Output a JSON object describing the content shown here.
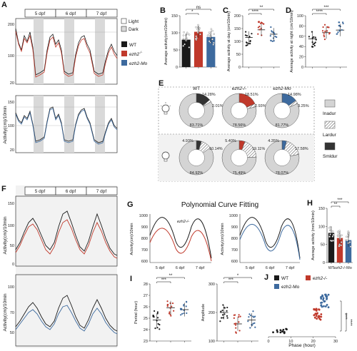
{
  "colors": {
    "wt": "#1a1a1a",
    "ezh2_mut": "#c0392b",
    "ezh2_mo": "#3d6a9e",
    "dark_band": "#d9d9d9",
    "panel_bg": "#f2f2f2",
    "grey_slice": "#d4d4d4"
  },
  "panel_letters": [
    "A",
    "B",
    "C",
    "D",
    "E",
    "F",
    "G",
    "H",
    "I",
    "J"
  ],
  "A": {
    "day_labels": [
      "5 dpf",
      "6 dpf",
      "7 dpf"
    ],
    "ylabel": "Activity(cm)/10min",
    "top_ticks": [
      "200",
      "100",
      "20"
    ],
    "bottom_ticks": [
      "150",
      "100",
      "20"
    ],
    "legend_light": "Light",
    "legend_dark": "Dark",
    "legend_series": [
      {
        "name": "WT",
        "color": "#1a1a1a",
        "bind_key": "wt"
      },
      {
        "name": "ezh2",
        "sup": "-/-",
        "color": "#c0392b",
        "bind_key": "mut"
      },
      {
        "name": "ezh2-Mo",
        "color": "#3d6a9e",
        "bind_key": "mo"
      }
    ]
  },
  "chart_data": [
    {
      "panel": "B",
      "type": "bar",
      "ylabel": "Average activity(cm/10min)",
      "ylim": [
        0,
        150
      ],
      "yticks": [
        "150",
        "100",
        "50",
        "0"
      ],
      "categories": [
        "WT",
        "ezh2-/-",
        "ezh2-Mo"
      ],
      "values": [
        80,
        103,
        88
      ],
      "sig": [
        "*",
        "ns"
      ]
    },
    {
      "panel": "C",
      "type": "scatter",
      "ylabel": "Average activity at day (cm/10min)",
      "ylim": [
        0,
        200
      ],
      "yticks": [
        "200",
        "150",
        "100",
        "50",
        "0"
      ],
      "categories": [
        "WT",
        "ezh2-/-",
        "ezh2-Mo"
      ],
      "values": [
        115,
        145,
        128
      ],
      "sig": [
        "****",
        "**"
      ]
    },
    {
      "panel": "D",
      "type": "scatter",
      "ylabel": "Average activity at night (cm/10min)",
      "ylim": [
        0,
        100
      ],
      "yticks": [
        "100",
        "80",
        "60",
        "40",
        "20",
        "0"
      ],
      "categories": [
        "WT",
        "ezh2-/-",
        "ezh2-Mo"
      ],
      "values": [
        55,
        67,
        72
      ],
      "sig": [
        "****",
        "***"
      ]
    },
    {
      "panel": "E",
      "type": "pie",
      "categories": [
        "Inadur",
        "Lardur",
        "Smldur"
      ],
      "groups": [
        "WT",
        "ezh2-/-",
        "ezh2-Mo"
      ],
      "light": [
        [
          83.71,
          2.01,
          14.28
        ],
        [
          78.56,
          2.93,
          18.51
        ],
        [
          81.77,
          3.25,
          14.98
        ]
      ],
      "dark": [
        [
          84.92,
          10.14,
          4.93
        ],
        [
          75.49,
          19.11,
          5.4
        ],
        [
          78.07,
          17.58,
          4.35
        ]
      ]
    },
    {
      "panel": "G",
      "type": "line",
      "title": "Polynomial Curve Fitting",
      "ylabel": "Activity(cm)/10min",
      "yticks": [
        "1000",
        "900",
        "800",
        "700",
        "600"
      ],
      "x": [
        "5 dpf",
        "6 dpf",
        "7 dpf"
      ]
    },
    {
      "panel": "H",
      "type": "bar",
      "ylabel": "Average activity (mm/10min)",
      "ylim": [
        0,
        150
      ],
      "yticks": [
        "150",
        "100",
        "50",
        "0"
      ],
      "categories": [
        "WT",
        "ezh2-/-",
        "Mo"
      ],
      "values": [
        82,
        68,
        62
      ],
      "sig": [
        "**",
        "***"
      ]
    },
    {
      "panel": "I-period",
      "type": "scatter",
      "ylabel": "Period (hour)",
      "yticks": [
        "28",
        "27",
        "26",
        "25",
        "24",
        "23"
      ],
      "categories": [
        "WT",
        "ezh2-/-",
        "ezh2-Mo"
      ],
      "sig": [
        "***",
        "**"
      ]
    },
    {
      "panel": "I-amplitude",
      "type": "scatter",
      "ylabel": "Amplitude",
      "yticks": [
        "300",
        "200",
        "100"
      ],
      "categories": [
        "WT",
        "ezh2-/-",
        "ezh2-Mo"
      ],
      "sig": [
        "***",
        "*"
      ]
    },
    {
      "panel": "J",
      "type": "scatter",
      "xlabel": "Phase (hour)",
      "xticks": [
        "0",
        "10",
        "20",
        "30"
      ],
      "series": [
        {
          "name": "WT",
          "mean": 5
        },
        {
          "name": "ezh2-/-",
          "mean": 22
        },
        {
          "name": "ezh2-Mo",
          "mean": 25
        }
      ],
      "sig": [
        "****",
        "****"
      ]
    }
  ],
  "F": {
    "day_labels": [
      "5 dpf",
      "6 dpf",
      "7 dpf"
    ],
    "ylabel": "Activity(cm)/10min",
    "top_ticks": [
      "150",
      "100",
      "50",
      "0"
    ],
    "bottom_ticks": [
      "100",
      "70",
      "50"
    ]
  },
  "G_labels": {
    "ezh2_text": "ezh2",
    "ezh2_sup": "-/-",
    "wt": "WT",
    "mo": "ezh2-Mo"
  },
  "H_cats": {
    "wt": "WT",
    "mut": "ezh2",
    "mut_sup": "-/-",
    "mo": "Mo"
  },
  "E_labels": {
    "inadur": "Inadur",
    "lardur": "Lardur",
    "smldur": "Smldur"
  }
}
